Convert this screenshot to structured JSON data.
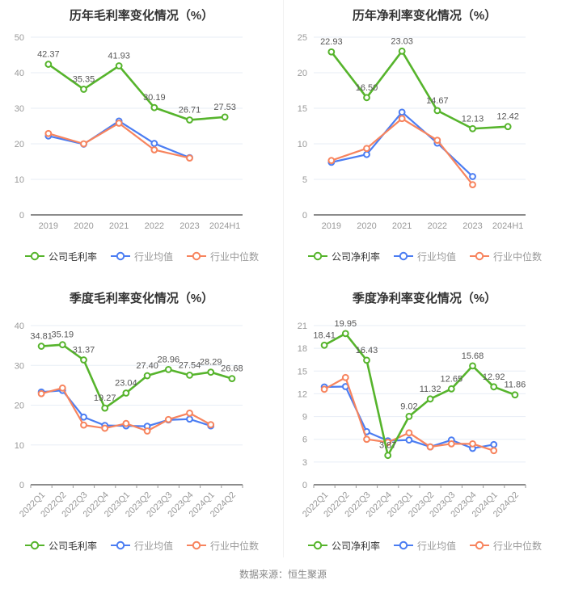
{
  "page": {
    "source_note": "数据来源：恒生聚源"
  },
  "colors": {
    "company": "#56b42c",
    "industry_avg": "#4b7df2",
    "industry_median": "#f7845e",
    "grid": "#e7edf6",
    "axis": "#8c8c8c",
    "tick_label": "#999999",
    "value_label": "#565656",
    "title": "#333333"
  },
  "chart_data": [
    {
      "type": "line",
      "title": "历年毛利率变化情况（%）",
      "categories": [
        "2019",
        "2020",
        "2021",
        "2022",
        "2023",
        "2024H1"
      ],
      "y_ticks": [
        0,
        10,
        20,
        30,
        40,
        50
      ],
      "ylim": [
        0,
        50
      ],
      "rotate_x_labels": false,
      "grid": true,
      "legend_position": "bottom",
      "series": [
        {
          "name": "公司毛利率",
          "color": "company",
          "values": [
            42.37,
            35.35,
            41.93,
            30.19,
            26.71,
            27.53
          ],
          "point_labels": [
            "42.37",
            "35.35",
            "41.93",
            "30.19",
            "26.71",
            "27.53"
          ]
        },
        {
          "name": "行业均值",
          "color": "industry_avg",
          "values": [
            22.2,
            19.9,
            26.4,
            20.1,
            16.1
          ]
        },
        {
          "name": "行业中位数",
          "color": "industry_median",
          "values": [
            22.9,
            20.0,
            25.8,
            18.3,
            16.0
          ]
        }
      ]
    },
    {
      "type": "line",
      "title": "历年净利率变化情况（%）",
      "categories": [
        "2019",
        "2020",
        "2021",
        "2022",
        "2023",
        "2024H1"
      ],
      "y_ticks": [
        0,
        5,
        10,
        15,
        20,
        25
      ],
      "ylim": [
        0,
        25
      ],
      "rotate_x_labels": false,
      "grid": true,
      "legend_position": "bottom",
      "series": [
        {
          "name": "公司净利率",
          "color": "company",
          "values": [
            22.93,
            16.5,
            23.03,
            14.67,
            12.13,
            12.42
          ],
          "point_labels": [
            "22.93",
            "16.50",
            "23.03",
            "14.67",
            "12.13",
            "12.42"
          ]
        },
        {
          "name": "行业均值",
          "color": "industry_avg",
          "values": [
            7.4,
            8.5,
            14.45,
            10.1,
            5.4
          ]
        },
        {
          "name": "行业中位数",
          "color": "industry_median",
          "values": [
            7.65,
            9.35,
            13.55,
            10.5,
            4.25
          ]
        }
      ]
    },
    {
      "type": "line",
      "title": "季度毛利率变化情况（%）",
      "categories": [
        "2022Q1",
        "2022Q2",
        "2022Q3",
        "2022Q4",
        "2023Q1",
        "2023Q2",
        "2023Q3",
        "2023Q4",
        "2024Q1",
        "2024Q2"
      ],
      "y_ticks": [
        0,
        10,
        20,
        30,
        40
      ],
      "ylim": [
        0,
        40
      ],
      "rotate_x_labels": true,
      "grid": true,
      "legend_position": "bottom",
      "series": [
        {
          "name": "公司毛利率",
          "color": "company",
          "values": [
            34.81,
            35.19,
            31.37,
            19.27,
            23.04,
            27.4,
            28.96,
            27.54,
            28.29,
            26.68
          ],
          "point_labels": [
            "34.81",
            "35.19",
            "31.37",
            "19.27",
            "23.04",
            "27.40",
            "28.96",
            "27.54",
            "28.29",
            "26.68"
          ]
        },
        {
          "name": "行业均值",
          "color": "industry_avg",
          "values": [
            23.3,
            23.7,
            17.0,
            14.9,
            14.8,
            14.7,
            16.3,
            16.5,
            14.8
          ]
        },
        {
          "name": "行业中位数",
          "color": "industry_median",
          "values": [
            22.9,
            24.3,
            15.0,
            14.2,
            15.4,
            13.5,
            16.4,
            18.0,
            15.1
          ]
        }
      ]
    },
    {
      "type": "line",
      "title": "季度净利率变化情况（%）",
      "categories": [
        "2022Q1",
        "2022Q2",
        "2022Q3",
        "2022Q4",
        "2023Q1",
        "2023Q2",
        "2023Q3",
        "2023Q4",
        "2024Q1",
        "2024Q2"
      ],
      "y_ticks": [
        0,
        3,
        6,
        9,
        12,
        15,
        18,
        21
      ],
      "ylim": [
        0,
        21
      ],
      "rotate_x_labels": true,
      "grid": true,
      "legend_position": "bottom",
      "series": [
        {
          "name": "公司净利率",
          "color": "company",
          "values": [
            18.41,
            19.95,
            16.43,
            3.87,
            9.02,
            11.32,
            12.65,
            15.68,
            12.92,
            11.86
          ],
          "point_labels": [
            "18.41",
            "19.95",
            "16.43",
            "3.87",
            "9.02",
            "11.32",
            "12.65",
            "15.68",
            "12.92",
            "11.86"
          ]
        },
        {
          "name": "行业均值",
          "color": "industry_avg",
          "values": [
            12.9,
            12.95,
            7.0,
            5.8,
            5.9,
            5.0,
            5.9,
            4.8,
            5.3
          ]
        },
        {
          "name": "行业中位数",
          "color": "industry_median",
          "values": [
            12.6,
            14.15,
            6.0,
            5.6,
            6.85,
            5.0,
            5.4,
            5.4,
            4.5
          ]
        }
      ]
    }
  ]
}
